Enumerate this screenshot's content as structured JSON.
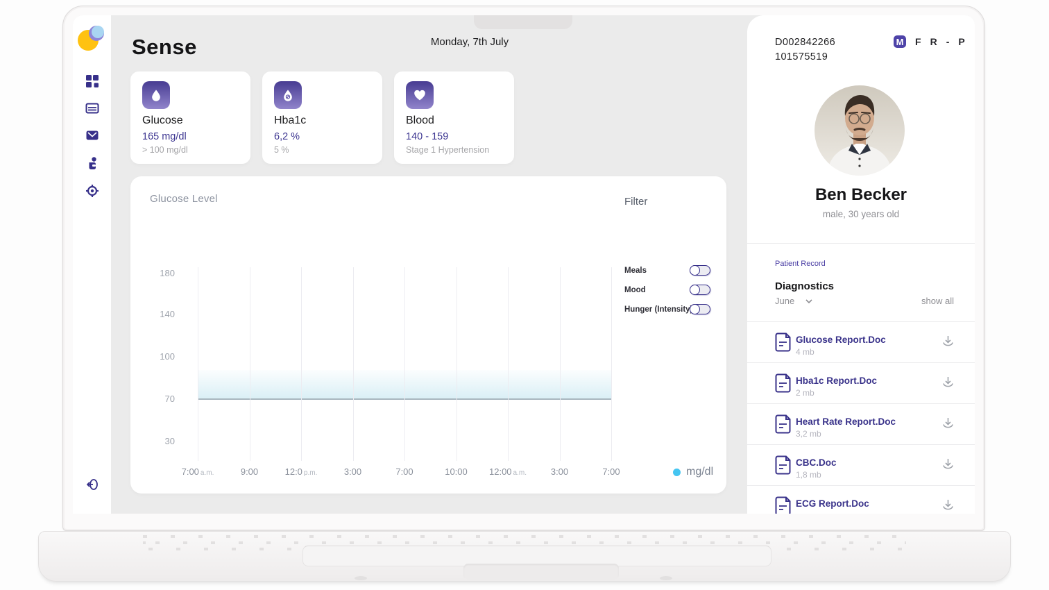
{
  "app": {
    "name": "Sense",
    "date": "Monday, 7th July"
  },
  "patient_ids": {
    "id1": "D002842266",
    "id2": "101575519"
  },
  "header_letters": {
    "m": "M",
    "f": "F",
    "r": "R",
    "dash": "-",
    "p": "P"
  },
  "cards": [
    {
      "title": "Glucose",
      "value": "165 mg/dl",
      "sub": "> 100 mg/dl",
      "icon": "drop-icon"
    },
    {
      "title": "Hba1c",
      "value": "6,2 %",
      "sub": "5 %",
      "icon": "drop-percent-icon"
    },
    {
      "title": "Blood",
      "value": "140 - 159",
      "sub": "Stage 1 Hypertension",
      "icon": "heart-icon"
    }
  ],
  "chart": {
    "title": "Glucose Level",
    "filter_label": "Filter",
    "toggles": [
      {
        "label": "Meals",
        "on": false
      },
      {
        "label": "Mood",
        "on": false
      },
      {
        "label": "Hunger (Intensity)",
        "on": false
      }
    ],
    "legend": {
      "label": "mg/dl",
      "dot_color": "#45C5F1"
    }
  },
  "chart_data": {
    "type": "line",
    "title": "Glucose Level",
    "x": [
      "7:00 a.m.",
      "9:00",
      "12:0 p.m.",
      "3:00",
      "7:00",
      "10:00",
      "12:00 a.m.",
      "3:00",
      "7:00"
    ],
    "series": [
      {
        "name": "mg/dl",
        "values": [
          70,
          70,
          70,
          70,
          70,
          70,
          70,
          70,
          70
        ]
      }
    ],
    "yticks": [
      180,
      140,
      100,
      70,
      30
    ],
    "ylim": [
      0,
      200
    ],
    "grid": "vertical-only",
    "legend_position": "bottom-right",
    "line_color": "#A9B6BF",
    "area_fill": "light-blue-gradient-above-line"
  },
  "patient": {
    "name": "Ben Becker",
    "meta": "male, 30 years old"
  },
  "record": {
    "section_label": "Patient Record",
    "title": "Diagnostics",
    "month": "June",
    "show_all": "show all",
    "files": [
      {
        "name": "Glucose Report.Doc",
        "size": "4 mb"
      },
      {
        "name": "Hba1c Report.Doc",
        "size": "2 mb"
      },
      {
        "name": "Heart Rate Report.Doc",
        "size": "3,2 mb"
      },
      {
        "name": "CBC.Doc",
        "size": "1,8 mb"
      },
      {
        "name": "ECG Report.Doc",
        "size": ""
      }
    ]
  },
  "sidebar_icons": [
    "dashboard-grid-icon",
    "records-list-icon",
    "mail-icon",
    "patients-icon",
    "settings-target-icon",
    "logout-icon"
  ],
  "colors": {
    "accent_purple": "#37308A",
    "value_indigo": "#3D3691",
    "badge_purple": "#4E43A8",
    "legend_cyan": "#45C5F1",
    "app_background": "#EBEBEB",
    "panel_white": "#FFFFFF",
    "muted_gray": "#9A9FA8"
  }
}
